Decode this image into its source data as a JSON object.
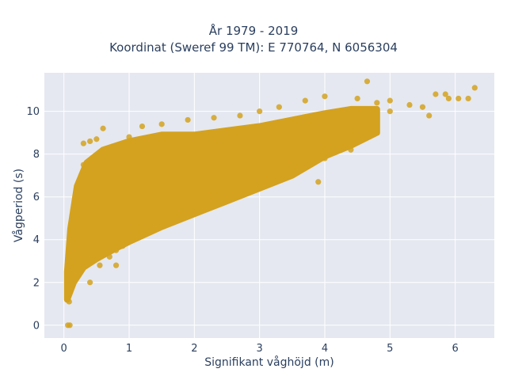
{
  "chart_data": {
    "type": "scatter",
    "title_line1": "År 1979 - 2019",
    "title_line2": "Koordinat (Sweref 99 TM): E 770764, N 6056304",
    "xlabel": "Signifikant våghöjd (m)",
    "ylabel": "Vågperiod (s)",
    "xlim": [
      -0.3,
      6.6
    ],
    "ylim": [
      -0.6,
      11.8
    ],
    "x_ticks": [
      0,
      1,
      2,
      3,
      4,
      5,
      6
    ],
    "y_ticks": [
      0,
      2,
      4,
      6,
      8,
      10
    ],
    "grid": true,
    "legend": "none",
    "marker_color": "#d4a21f",
    "plot_background": "#e5e8f0",
    "points": [
      [
        0.05,
        1.3
      ],
      [
        0.08,
        1.1
      ],
      [
        0.06,
        0.0
      ],
      [
        0.09,
        0.0
      ],
      [
        0.1,
        1.8
      ],
      [
        0.12,
        2.5
      ],
      [
        0.15,
        3.2
      ],
      [
        0.2,
        4.5
      ],
      [
        0.25,
        5.5
      ],
      [
        0.3,
        6.5
      ],
      [
        0.35,
        7.3
      ],
      [
        0.3,
        8.5
      ],
      [
        0.4,
        8.6
      ],
      [
        0.5,
        8.7
      ],
      [
        0.6,
        9.2
      ],
      [
        0.55,
        2.8
      ],
      [
        0.7,
        3.2
      ],
      [
        0.8,
        3.5
      ],
      [
        0.9,
        3.7
      ],
      [
        1.0,
        4.0
      ],
      [
        1.1,
        4.2
      ],
      [
        1.2,
        4.4
      ],
      [
        1.4,
        4.7
      ],
      [
        1.6,
        5.0
      ],
      [
        1.8,
        5.3
      ],
      [
        2.0,
        5.5
      ],
      [
        2.2,
        5.8
      ],
      [
        2.5,
        6.0
      ],
      [
        2.8,
        6.4
      ],
      [
        3.0,
        6.7
      ],
      [
        3.3,
        6.9
      ],
      [
        3.6,
        7.2
      ],
      [
        4.0,
        7.8
      ],
      [
        4.4,
        8.2
      ],
      [
        1.2,
        9.3
      ],
      [
        1.5,
        9.4
      ],
      [
        1.9,
        9.6
      ],
      [
        2.3,
        9.7
      ],
      [
        2.7,
        9.8
      ],
      [
        3.0,
        10.0
      ],
      [
        3.3,
        10.2
      ],
      [
        3.7,
        10.5
      ],
      [
        4.0,
        10.7
      ],
      [
        4.5,
        10.6
      ],
      [
        4.8,
        10.4
      ],
      [
        4.65,
        11.4
      ],
      [
        5.0,
        10.5
      ],
      [
        5.3,
        10.3
      ],
      [
        5.5,
        10.2
      ],
      [
        5.7,
        10.8
      ],
      [
        5.85,
        10.8
      ],
      [
        5.9,
        10.6
      ],
      [
        6.05,
        10.6
      ],
      [
        6.2,
        10.6
      ],
      [
        6.3,
        11.1
      ],
      [
        5.6,
        9.8
      ],
      [
        5.0,
        10.0
      ],
      [
        4.8,
        9.7
      ],
      [
        4.5,
        9.2
      ],
      [
        3.9,
        6.7
      ],
      [
        3.2,
        8.2
      ],
      [
        2.5,
        8.5
      ],
      [
        1.8,
        8.6
      ],
      [
        1.0,
        8.8
      ],
      [
        0.6,
        7.8
      ],
      [
        0.3,
        7.5
      ],
      [
        0.8,
        2.8
      ],
      [
        0.4,
        2.0
      ]
    ]
  }
}
